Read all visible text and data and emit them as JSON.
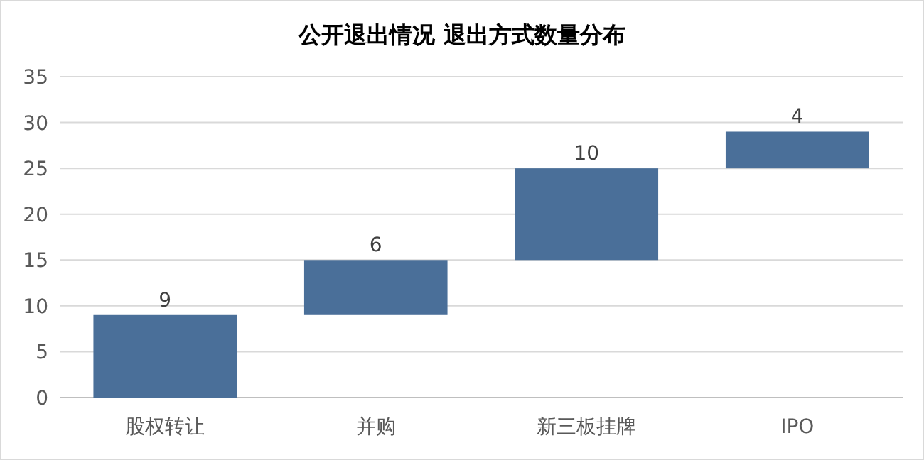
{
  "chart_data": {
    "type": "bar",
    "title": "公开退出情况 退出方式数量分布",
    "categories": [
      "股权转让",
      "并购",
      "新三板挂牌",
      "IPO"
    ],
    "values": [
      9,
      6,
      10,
      4
    ],
    "base": [
      0,
      9,
      15,
      25
    ],
    "color": "#4a6f99",
    "ylim": [
      0,
      35
    ],
    "yticks": [
      0,
      5,
      10,
      15,
      20,
      25,
      30,
      35
    ],
    "grid": "y",
    "data_labels": true
  }
}
